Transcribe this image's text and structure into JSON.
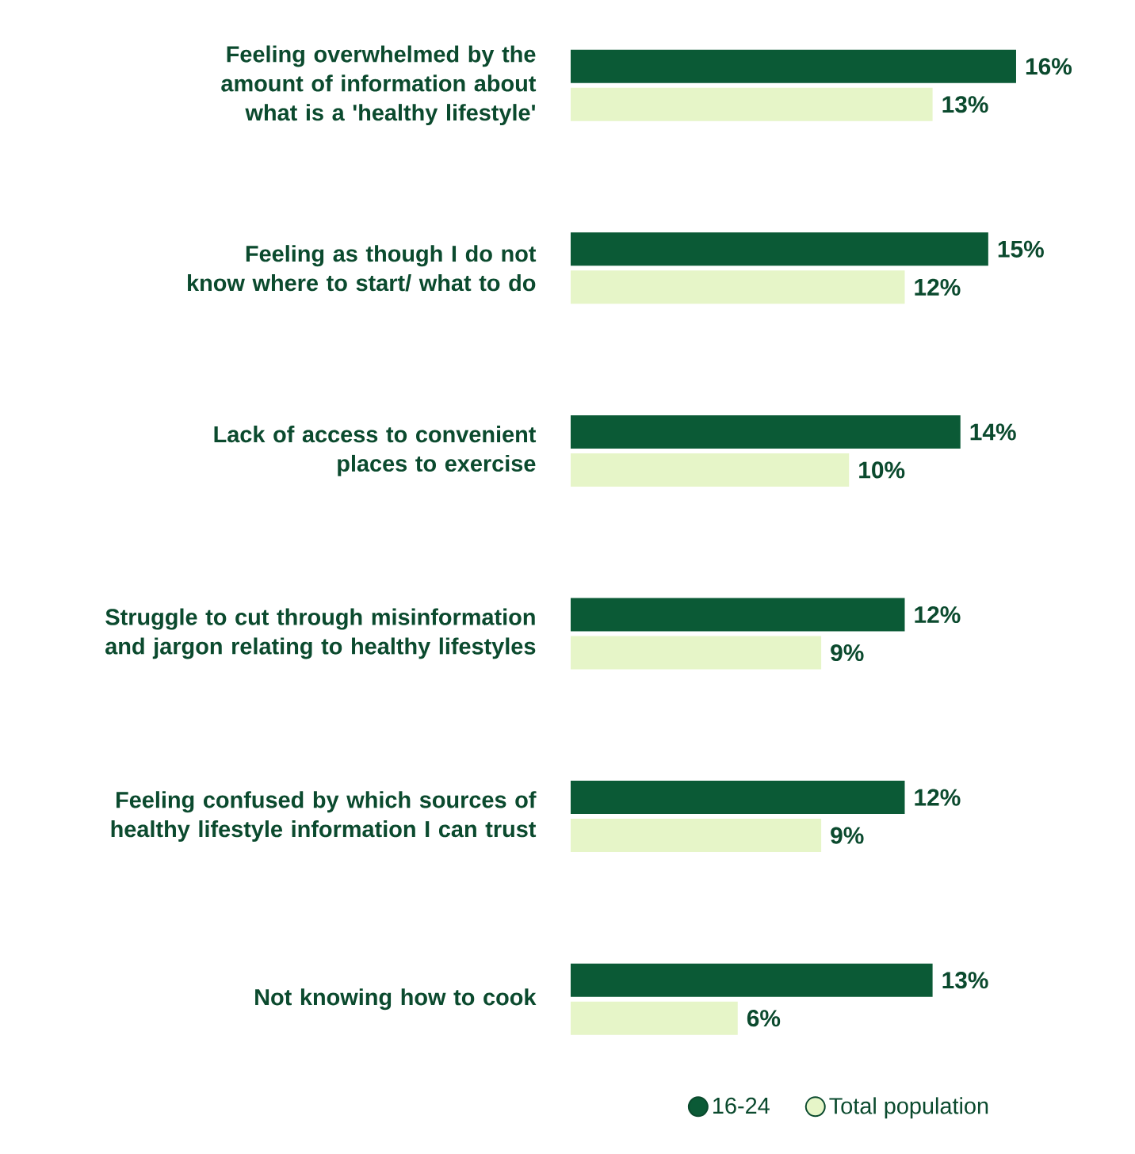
{
  "chart_data": {
    "type": "bar",
    "orientation": "horizontal",
    "categories": [
      "Feeling overwhelmed by the amount of information about what is a 'healthy lifestyle'",
      "Feeling as though I do not know where to start/ what to do",
      "Lack of access to convenient places to exercise",
      "Struggle to cut through misinformation and jargon relating to healthy lifestyles",
      "Feeling confused by which sources of healthy lifestyle information I can trust",
      "Not knowing how to cook"
    ],
    "series": [
      {
        "name": "16-24",
        "color": "#0b5a36",
        "values": [
          16,
          15,
          14,
          12,
          12,
          13
        ],
        "value_labels": [
          "16%",
          "15%",
          "14%",
          "12%",
          "12%",
          "13%"
        ]
      },
      {
        "name": "Total population",
        "color": "#e6f5c8",
        "values": [
          13,
          12,
          10,
          9,
          9,
          6
        ],
        "value_labels": [
          "13%",
          "12%",
          "10%",
          "9%",
          "9%",
          "6%"
        ]
      }
    ],
    "legend": "bottom"
  }
}
